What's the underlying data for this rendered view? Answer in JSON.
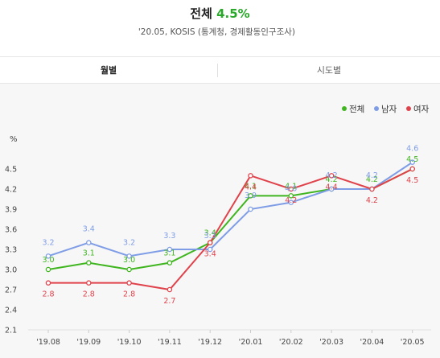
{
  "header": {
    "title_label": "전체",
    "title_value": "4.5%",
    "subtitle": "'20.05, KOSIS (통계청, 경제활동인구조사)"
  },
  "tabs": [
    {
      "label": "월별",
      "active": true
    },
    {
      "label": "시도별",
      "active": false
    }
  ],
  "chart_data": {
    "type": "line",
    "ylabel": "%",
    "ylim": [
      2.1,
      4.8
    ],
    "yticks": [
      "4.5",
      "4.2",
      "3.9",
      "3.6",
      "3.3",
      "3.0",
      "2.7",
      "2.4",
      "2.1"
    ],
    "categories": [
      "'19.08",
      "'19.09",
      "'19.10",
      "'19.11",
      "'19.12",
      "'20.01",
      "'20.02",
      "'20.03",
      "'20.04",
      "'20.05"
    ],
    "legend_position": "top-right",
    "series": [
      {
        "name": "전체",
        "color": "#3fb51f",
        "values": [
          3.0,
          3.1,
          3.0,
          3.1,
          3.4,
          4.1,
          4.1,
          4.2,
          4.2,
          4.5
        ]
      },
      {
        "name": "남자",
        "color": "#7f9de6",
        "values": [
          3.2,
          3.4,
          3.2,
          3.3,
          3.3,
          3.9,
          4.0,
          4.2,
          4.2,
          4.6
        ]
      },
      {
        "name": "여자",
        "color": "#e0424b",
        "values": [
          2.8,
          2.8,
          2.8,
          2.7,
          3.4,
          4.4,
          4.2,
          4.4,
          4.2,
          4.5
        ]
      }
    ]
  }
}
